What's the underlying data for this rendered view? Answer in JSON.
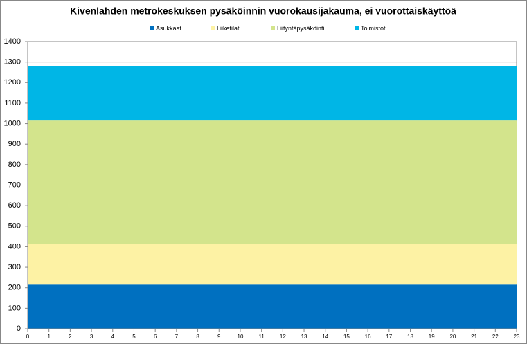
{
  "chart_data": {
    "type": "stacked_area",
    "title": "Kivenlahden metrokeskuksen pysäköinnin vuorokausijakauma, ei vuorottaiskäyttöä",
    "x": [
      0,
      1,
      2,
      3,
      4,
      5,
      6,
      7,
      8,
      9,
      10,
      11,
      12,
      13,
      14,
      15,
      16,
      17,
      18,
      19,
      20,
      21,
      22,
      23
    ],
    "series": [
      {
        "name": "Asukkaat",
        "color": "#0070c0",
        "values": [
          215,
          215,
          215,
          215,
          215,
          215,
          215,
          215,
          215,
          215,
          215,
          215,
          215,
          215,
          215,
          215,
          215,
          215,
          215,
          215,
          215,
          215,
          215,
          215
        ]
      },
      {
        "name": "Liiketilat",
        "color": "#fdf2a4",
        "values": [
          200,
          200,
          200,
          200,
          200,
          200,
          200,
          200,
          200,
          200,
          200,
          200,
          200,
          200,
          200,
          200,
          200,
          200,
          200,
          200,
          200,
          200,
          200,
          200
        ]
      },
      {
        "name": "Liityntäpysäköinti",
        "color": "#d3e48c",
        "values": [
          600,
          600,
          600,
          600,
          600,
          600,
          600,
          600,
          600,
          600,
          600,
          600,
          600,
          600,
          600,
          600,
          600,
          600,
          600,
          600,
          600,
          600,
          600,
          600
        ]
      },
      {
        "name": "Toimistot",
        "color": "#00b6e6",
        "values": [
          265,
          265,
          265,
          265,
          265,
          265,
          265,
          265,
          265,
          265,
          265,
          265,
          265,
          265,
          265,
          265,
          265,
          265,
          265,
          265,
          265,
          265,
          265,
          265
        ]
      }
    ],
    "xlim": [
      0,
      23
    ],
    "xticks": [
      0,
      1,
      2,
      3,
      4,
      5,
      6,
      7,
      8,
      9,
      10,
      11,
      12,
      13,
      14,
      15,
      16,
      17,
      18,
      19,
      20,
      21,
      22,
      23
    ],
    "ylim": [
      0,
      1400
    ],
    "yticks": [
      0,
      100,
      200,
      300,
      400,
      500,
      600,
      700,
      800,
      900,
      1000,
      1100,
      1200,
      1300,
      1400
    ],
    "grid": true,
    "legend": "top"
  }
}
